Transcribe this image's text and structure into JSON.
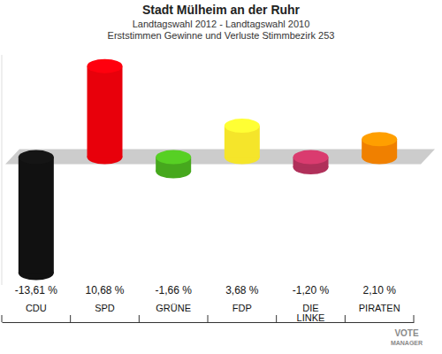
{
  "chart_data": {
    "type": "bar",
    "title": "Stadt Mülheim an der Ruhr",
    "subtitle": [
      "Landtagswahl 2012 - Landtagswahl 2010",
      "Erststimmen Gewinne und Verluste Stimmbezirk 253"
    ],
    "categories": [
      "CDU",
      "SPD",
      "GRÜNE",
      "FDP",
      "DIE LINKE",
      "PIRATEN"
    ],
    "values": [
      -13.61,
      10.68,
      -1.66,
      3.68,
      -1.2,
      2.1
    ],
    "value_labels": [
      "-13,61 %",
      "10,68 %",
      "-1,66 %",
      "3,68 %",
      "-1,20 %",
      "2,10 %"
    ],
    "colors": [
      "#111111",
      "#e8000b",
      "#46a81d",
      "#f5e52a",
      "#b0305a",
      "#f08000"
    ],
    "ylim": [
      -15,
      12
    ],
    "tick_labels": "x",
    "data_labels": true,
    "grid": false,
    "annotations": [
      "VOTE",
      "MANAGER"
    ]
  }
}
